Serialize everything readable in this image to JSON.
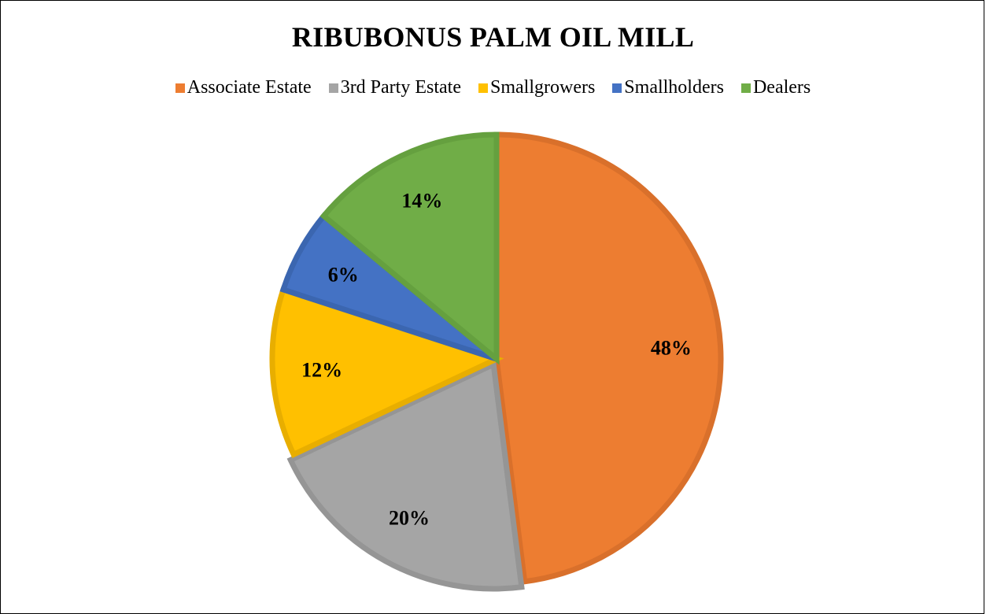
{
  "chart_data": {
    "type": "pie",
    "title": "RIBUBONUS PALM OIL MILL",
    "legend_position": "top",
    "categories": [
      "Associate Estate",
      "3rd Party Estate",
      "Smallgrowers",
      "Smallholders",
      "Dealers"
    ],
    "values": [
      48,
      20,
      12,
      6,
      14
    ],
    "data_labels": [
      "48%",
      "20%",
      "12%",
      "6%",
      "14%"
    ],
    "colors": [
      "#ED7D31",
      "#A5A5A5",
      "#FFC000",
      "#4472C4",
      "#70AD47"
    ],
    "border_colors": [
      "#D9702B",
      "#959595",
      "#E8AE00",
      "#3B66B0",
      "#65A03F"
    ]
  }
}
